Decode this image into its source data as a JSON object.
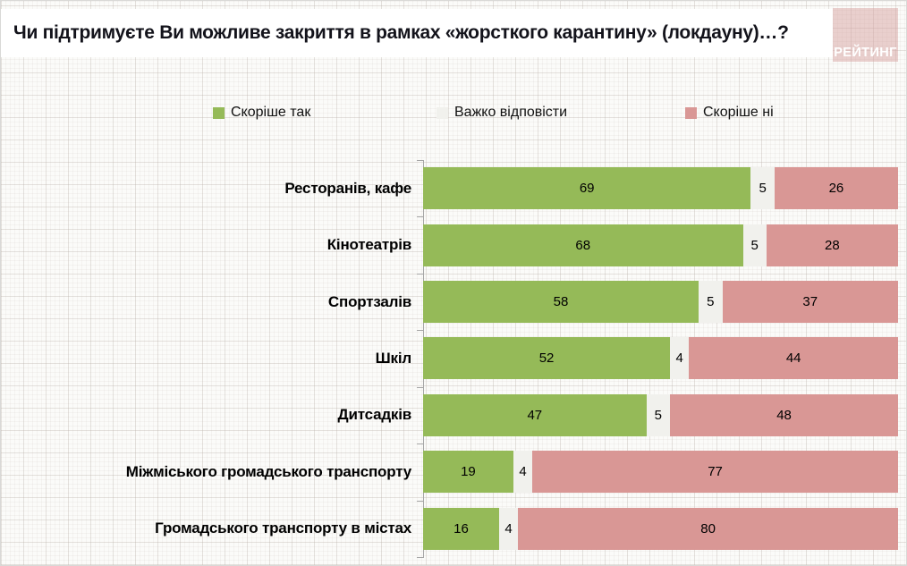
{
  "title": "Чи підтримуєте Ви можливе закриття в рамках «жорсткого карантину» (локдауну)…?",
  "logo": {
    "text": "РЕЙТИНГ"
  },
  "legend": {
    "items": [
      {
        "label": "Скоріше так",
        "color": "#95ba58"
      },
      {
        "label": "Важко відповісти",
        "color": "#f1f1ed"
      },
      {
        "label": "Скоріше ні",
        "color": "#d99795"
      }
    ]
  },
  "chart_data": {
    "type": "bar",
    "orientation": "horizontal",
    "stacked": true,
    "unit": "percent",
    "xlim": [
      0,
      100
    ],
    "legend_position": "top",
    "categories": [
      "Ресторанів, кафе",
      "Кінотеатрів",
      "Спортзалів",
      "Шкіл",
      "Дитсадків",
      "Міжміського громадського транспорту",
      "Громадського транспорту в містах"
    ],
    "series": [
      {
        "name": "Скоріше так",
        "color": "#95ba58",
        "values": [
          69,
          68,
          58,
          52,
          47,
          19,
          16
        ]
      },
      {
        "name": "Важко відповісти",
        "color": "#f1f1ed",
        "values": [
          5,
          5,
          5,
          4,
          5,
          4,
          4
        ]
      },
      {
        "name": "Скоріше ні",
        "color": "#d99795",
        "values": [
          26,
          28,
          37,
          44,
          48,
          77,
          80
        ]
      }
    ]
  },
  "colors": {
    "accent_green": "#95ba58",
    "neutral_gray": "#f1f1ed",
    "accent_pink": "#d99795",
    "logo_bg": "#e9c9c8",
    "axis": "#a6a6a6"
  }
}
